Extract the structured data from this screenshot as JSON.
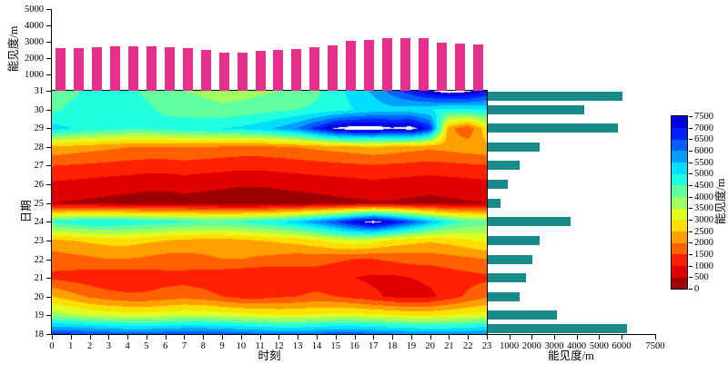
{
  "chart_data": [
    {
      "id": "top_bar",
      "type": "bar",
      "ylabel": "能见度/m",
      "ylim": [
        0,
        5000
      ],
      "yticks": [
        1000,
        2000,
        3000,
        4000,
        5000
      ],
      "bar_color": "#e6308c",
      "x": [
        0,
        1,
        2,
        3,
        4,
        5,
        6,
        7,
        8,
        9,
        10,
        11,
        12,
        13,
        14,
        15,
        16,
        17,
        18,
        19,
        20,
        21,
        22,
        23
      ],
      "values": [
        2600,
        2600,
        2650,
        2700,
        2700,
        2700,
        2650,
        2600,
        2500,
        2350,
        2350,
        2450,
        2500,
        2550,
        2650,
        2800,
        3050,
        3100,
        3200,
        3200,
        3250,
        2950,
        2900,
        2850
      ]
    },
    {
      "id": "heatmap",
      "type": "heatmap",
      "xlabel": "时刻",
      "ylabel": "日期",
      "xticks": [
        0,
        1,
        2,
        3,
        4,
        5,
        6,
        7,
        8,
        9,
        10,
        11,
        12,
        13,
        14,
        15,
        16,
        17,
        18,
        19,
        20,
        21,
        22,
        23
      ],
      "yticks": [
        31,
        30,
        29,
        28,
        27,
        26,
        25,
        24,
        23,
        22,
        21,
        20,
        19,
        18
      ],
      "vmin": 0,
      "vmax": 7500,
      "level_step": 500,
      "rows": [
        {
          "day": 18,
          "values": [
            6500,
            6500,
            6400,
            6300,
            6200,
            6200,
            6300,
            6400,
            6400,
            6300,
            6200,
            6100,
            6000,
            6000,
            6100,
            6200,
            6200,
            6100,
            6000,
            5900,
            5800,
            5800,
            5900,
            6000
          ]
        },
        {
          "day": 19,
          "values": [
            3800,
            3600,
            3400,
            3300,
            3200,
            3200,
            3300,
            3400,
            3400,
            3300,
            3200,
            3100,
            3000,
            3000,
            3100,
            3200,
            3200,
            3100,
            3000,
            2900,
            2900,
            3000,
            3100,
            3200
          ]
        },
        {
          "day": 20,
          "values": [
            2500,
            2200,
            1900,
            1700,
            1600,
            1600,
            1700,
            1800,
            1700,
            1500,
            1300,
            1300,
            1400,
            1500,
            1600,
            1500,
            1300,
            1100,
            900,
            800,
            900,
            1200,
            1600,
            1900
          ]
        },
        {
          "day": 21,
          "values": [
            1400,
            1300,
            1200,
            1100,
            1100,
            1200,
            1300,
            1300,
            1200,
            1100,
            1000,
            1000,
            1100,
            1200,
            1200,
            1100,
            1000,
            900,
            900,
            1000,
            1100,
            1200,
            1300,
            1400
          ]
        },
        {
          "day": 22,
          "values": [
            1700,
            1800,
            1900,
            2000,
            2000,
            1900,
            1800,
            1800,
            1900,
            2000,
            2000,
            1900,
            1800,
            1700,
            1700,
            1600,
            1500,
            1500,
            1600,
            1700,
            1700,
            1800,
            1900,
            2000
          ]
        },
        {
          "day": 23,
          "values": [
            2400,
            2500,
            2600,
            2700,
            2700,
            2600,
            2500,
            2400,
            2300,
            2300,
            2400,
            2500,
            2600,
            2700,
            2900,
            3200,
            3400,
            3200,
            2900,
            2700,
            2600,
            2700,
            2900,
            3100
          ]
        },
        {
          "day": 24,
          "values": [
            4600,
            4800,
            5000,
            5000,
            4900,
            4800,
            4700,
            4600,
            4500,
            4500,
            4600,
            4800,
            5000,
            5400,
            5900,
            6500,
            7200,
            7800,
            7200,
            6400,
            5600,
            4800,
            4400,
            4200
          ]
        },
        {
          "day": 25,
          "values": [
            500,
            450,
            400,
            350,
            300,
            250,
            250,
            300,
            250,
            200,
            150,
            150,
            200,
            250,
            300,
            350,
            400,
            450,
            450,
            400,
            350,
            400,
            450,
            500
          ]
        },
        {
          "day": 26,
          "values": [
            900,
            850,
            800,
            750,
            700,
            650,
            650,
            700,
            650,
            600,
            550,
            550,
            600,
            650,
            700,
            750,
            800,
            850,
            800,
            750,
            700,
            750,
            800,
            850
          ]
        },
        {
          "day": 27,
          "values": [
            1500,
            1450,
            1400,
            1350,
            1300,
            1250,
            1250,
            1300,
            1250,
            1200,
            1150,
            1150,
            1200,
            1250,
            1300,
            1350,
            1400,
            1450,
            1400,
            1350,
            1300,
            1350,
            1400,
            1450
          ]
        },
        {
          "day": 28,
          "values": [
            2400,
            2300,
            2200,
            2100,
            2000,
            1950,
            1950,
            2000,
            1950,
            1900,
            1850,
            1850,
            1900,
            2000,
            2100,
            2200,
            2300,
            2400,
            2300,
            2200,
            2100,
            2200,
            2300,
            2400
          ]
        },
        {
          "day": 29,
          "values": [
            5200,
            5000,
            4800,
            4700,
            4600,
            4600,
            4700,
            4800,
            4900,
            5000,
            5100,
            5300,
            5600,
            6000,
            6800,
            7600,
            7900,
            7900,
            7600,
            7800,
            6800,
            2200,
            1600,
            2800
          ]
        },
        {
          "day": 30,
          "values": [
            4400,
            4600,
            4800,
            4900,
            4800,
            4600,
            4400,
            4300,
            4200,
            4100,
            4200,
            4300,
            4400,
            4500,
            4600,
            4800,
            5000,
            5200,
            5300,
            5200,
            5000,
            4800,
            4900,
            5000
          ]
        },
        {
          "day": 31,
          "values": [
            4200,
            4400,
            4600,
            4700,
            4600,
            4400,
            4200,
            4000,
            3900,
            3800,
            3800,
            3900,
            4000,
            4200,
            4400,
            4800,
            5200,
            5600,
            6200,
            6800,
            7400,
            7800,
            7600,
            7000
          ]
        }
      ]
    },
    {
      "id": "right_bar",
      "type": "bar-horizontal",
      "xlabel": "能见度/m",
      "xlim": [
        0,
        7500
      ],
      "xticks": [
        1000,
        2000,
        3000,
        4000,
        5000,
        6000,
        7500
      ],
      "bar_color": "#178a8c",
      "days": [
        18,
        19,
        20,
        21,
        22,
        23,
        24,
        25,
        26,
        27,
        28,
        29,
        30,
        31
      ],
      "values": [
        6200,
        3100,
        1400,
        1700,
        2000,
        2300,
        3700,
        550,
        900,
        1400,
        2300,
        5800,
        4300,
        6000
      ]
    },
    {
      "id": "colorbar",
      "type": "colorbar",
      "label": "能见度/m",
      "min": 0,
      "max": 7500,
      "step": 500,
      "ticks": [
        7500,
        7000,
        6500,
        6000,
        5500,
        5000,
        4500,
        4000,
        3500,
        3000,
        2500,
        2000,
        1500,
        1000,
        500,
        0
      ]
    }
  ]
}
